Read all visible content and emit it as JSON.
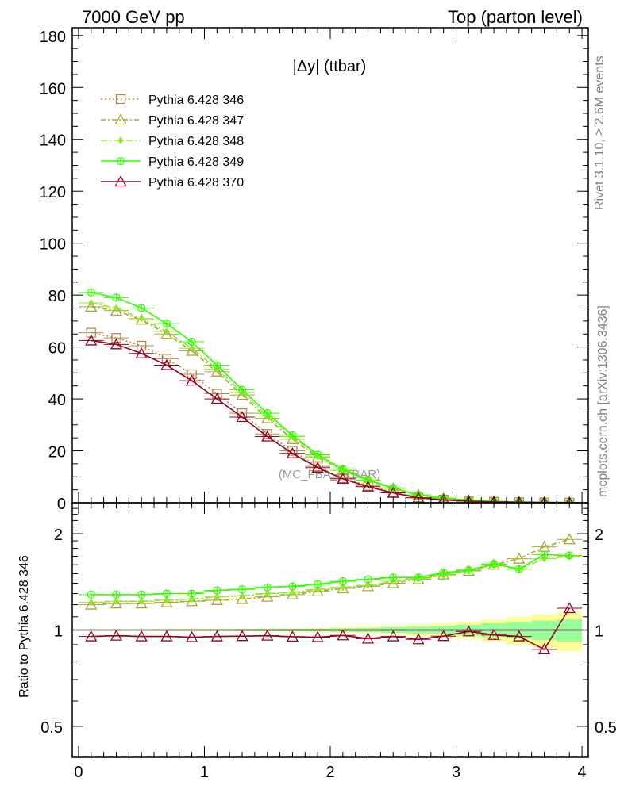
{
  "header": {
    "left": "7000 GeV pp",
    "right": "Top (parton level)"
  },
  "side_labels": {
    "rivet": "Rivet 3.1.10, ≥ 2.6M events",
    "mcplots": "mcplots.cern.ch [arXiv:1306.3436]"
  },
  "chart_data": [
    {
      "type": "line",
      "panel": "main",
      "title": "|Δy| (ttbar)",
      "watermark": "(MC_FBA_TTBAR)",
      "xlabel": "",
      "ylabel": "",
      "xlim": [
        -0.05,
        4.05
      ],
      "ylim": [
        0,
        183
      ],
      "yticks": [
        0,
        20,
        40,
        60,
        80,
        100,
        120,
        140,
        160,
        180
      ],
      "xticks": [
        0,
        1,
        2,
        3,
        4
      ],
      "legend_position": "top-left",
      "x": [
        0.1,
        0.3,
        0.5,
        0.7,
        0.9,
        1.1,
        1.3,
        1.5,
        1.7,
        1.9,
        2.1,
        2.3,
        2.5,
        2.7,
        2.9,
        3.1,
        3.3,
        3.5,
        3.7,
        3.9
      ],
      "series": [
        {
          "name": "Pythia 6.428 346",
          "color": "#b5884d",
          "dash": "2,3",
          "marker": "square",
          "values": [
            65.5,
            63.5,
            60.5,
            55.5,
            49.5,
            42,
            34.5,
            26.5,
            20,
            14,
            9.5,
            6.5,
            4,
            2,
            1.2,
            0.6,
            0.35,
            0.2,
            0.1,
            0.05
          ]
        },
        {
          "name": "Pythia 6.428 347",
          "color": "#a8a832",
          "dash": "6,3,2,3",
          "marker": "triangle-open",
          "values": [
            75.5,
            74,
            70.5,
            65,
            58.5,
            50.5,
            41.5,
            32.5,
            24.5,
            17.5,
            12.5,
            8.5,
            5.5,
            3,
            1.7,
            1,
            0.55,
            0.3,
            0.18,
            0.1
          ]
        },
        {
          "name": "Pythia 6.428 348",
          "color": "#99e333",
          "dash": "8,3,2,3",
          "marker": "diamond",
          "values": [
            77,
            75,
            71,
            66,
            59.5,
            51.5,
            42.5,
            33.5,
            25.5,
            18,
            12.5,
            8.5,
            5.5,
            3,
            1.7,
            1,
            0.55,
            0.3,
            0.17,
            0.09
          ]
        },
        {
          "name": "Pythia 6.428 349",
          "color": "#33ff00",
          "dash": "",
          "marker": "circle-plus",
          "values": [
            81,
            79,
            75,
            69,
            62,
            53,
            43.5,
            34.5,
            26,
            18.5,
            13,
            8.8,
            5.7,
            3,
            1.8,
            1,
            0.55,
            0.3,
            0.17,
            0.09
          ]
        },
        {
          "name": "Pythia 6.428 370",
          "color": "#990022",
          "dash": "",
          "marker": "triangle-open",
          "values": [
            62.5,
            61,
            57.5,
            53,
            47,
            40,
            33,
            25.5,
            19,
            13.5,
            9.2,
            6.2,
            3.8,
            1.9,
            1.1,
            0.6,
            0.34,
            0.19,
            0.09,
            0.06
          ]
        }
      ]
    },
    {
      "type": "line",
      "panel": "ratio",
      "ylabel": "Ratio to Pythia 6.428 346",
      "xlabel": "",
      "xlim": [
        -0.05,
        4.05
      ],
      "ylim": [
        0.4,
        2.5
      ],
      "log_y": true,
      "ytick_labels": [
        "0.5",
        "1",
        "2"
      ],
      "yticks": [
        0.5,
        1,
        2
      ],
      "xticks": [
        0,
        1,
        2,
        3,
        4
      ],
      "xtick_labels": [
        "0",
        "1",
        "2",
        "3",
        "4"
      ],
      "x": [
        0.1,
        0.3,
        0.5,
        0.7,
        0.9,
        1.1,
        1.3,
        1.5,
        1.7,
        1.9,
        2.1,
        2.3,
        2.5,
        2.7,
        2.9,
        3.1,
        3.3,
        3.5,
        3.7,
        3.9
      ],
      "band_inner": [
        0.003,
        0.003,
        0.003,
        0.004,
        0.004,
        0.005,
        0.006,
        0.007,
        0.008,
        0.01,
        0.012,
        0.015,
        0.02,
        0.025,
        0.03,
        0.04,
        0.05,
        0.06,
        0.07,
        0.08
      ],
      "band_outer": [
        0.006,
        0.006,
        0.006,
        0.007,
        0.008,
        0.009,
        0.01,
        0.012,
        0.014,
        0.017,
        0.02,
        0.025,
        0.03,
        0.04,
        0.05,
        0.06,
        0.08,
        0.1,
        0.12,
        0.14
      ],
      "series": [
        {
          "name": "Pythia 6.428 347",
          "color": "#a8a832",
          "dash": "6,3,2,3",
          "marker": "triangle-open",
          "values": [
            1.2,
            1.21,
            1.21,
            1.22,
            1.23,
            1.24,
            1.25,
            1.27,
            1.29,
            1.32,
            1.35,
            1.37,
            1.4,
            1.44,
            1.49,
            1.53,
            1.6,
            1.67,
            1.82,
            1.92
          ]
        },
        {
          "name": "Pythia 6.428 348",
          "color": "#99e333",
          "dash": "8,3,2,3",
          "marker": "diamond",
          "values": [
            1.22,
            1.23,
            1.23,
            1.24,
            1.25,
            1.27,
            1.28,
            1.3,
            1.31,
            1.34,
            1.36,
            1.38,
            1.42,
            1.45,
            1.48,
            1.54,
            1.6,
            1.55,
            1.67,
            1.7
          ]
        },
        {
          "name": "Pythia 6.428 349",
          "color": "#33ff00",
          "dash": "",
          "marker": "circle-plus",
          "values": [
            1.29,
            1.29,
            1.29,
            1.3,
            1.3,
            1.33,
            1.34,
            1.36,
            1.37,
            1.39,
            1.42,
            1.44,
            1.46,
            1.46,
            1.51,
            1.54,
            1.61,
            1.55,
            1.72,
            1.71
          ]
        },
        {
          "name": "Pythia 6.428 370",
          "color": "#990022",
          "dash": "",
          "marker": "triangle-open",
          "values": [
            0.955,
            0.96,
            0.955,
            0.955,
            0.95,
            0.955,
            0.957,
            0.96,
            0.953,
            0.95,
            0.962,
            0.94,
            0.955,
            0.935,
            0.957,
            0.99,
            0.965,
            0.955,
            0.87,
            1.17
          ]
        }
      ]
    }
  ]
}
